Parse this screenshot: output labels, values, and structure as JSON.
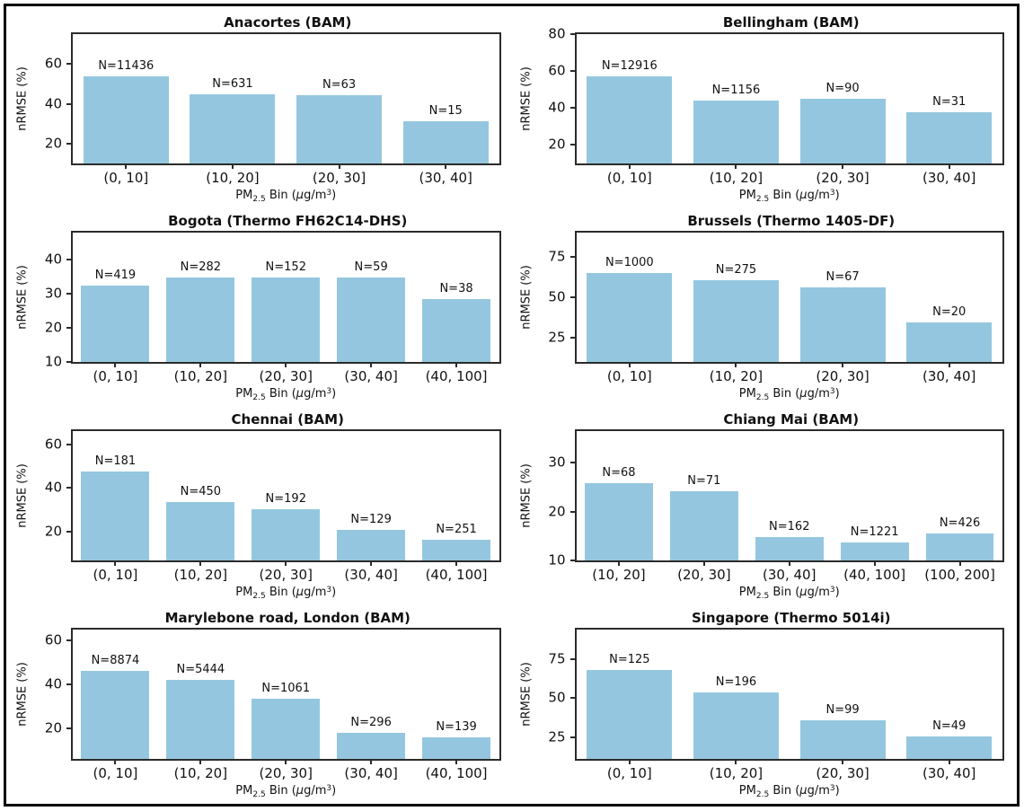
{
  "figure": {
    "background": "#ffffff",
    "frame_border_color": "#000000",
    "axis_color": "#2b2b2b",
    "text_color": "#111111",
    "bar_color": "#94c7df",
    "count_prefix": "N=",
    "shared_ylabel": "nRMSE (%)",
    "shared_xlabel_text": "PM2.5 Bin (μg/m³)",
    "xlabel_parts": {
      "p1": "PM",
      "sub": "2.5",
      "p2": " Bin (",
      "mu": "μ",
      "p3": "g/m",
      "sup": "3",
      "p4": ")"
    }
  },
  "chart_data": [
    {
      "type": "bar",
      "title": "Anacortes (BAM)",
      "ylabel": "nRMSE (%)",
      "xlabel": "PM2.5 Bin (μg/m³)",
      "categories": [
        "(0, 10]",
        "(10, 20]",
        "(20, 30]",
        "(30, 40]"
      ],
      "values": [
        53.8,
        44.6,
        44.1,
        31.2
      ],
      "counts": [
        11436,
        631,
        63,
        15
      ],
      "yticks": [
        20,
        40,
        60
      ],
      "ylim": [
        10,
        75
      ],
      "grid": false,
      "legend": false
    },
    {
      "type": "bar",
      "title": "Bellingham (BAM)",
      "ylabel": "nRMSE (%)",
      "xlabel": "PM2.5 Bin (μg/m³)",
      "categories": [
        "(0, 10]",
        "(10, 20]",
        "(20, 30]",
        "(30, 40]"
      ],
      "values": [
        57.0,
        44.2,
        45.2,
        37.5
      ],
      "counts": [
        12916,
        1156,
        90,
        31
      ],
      "yticks": [
        20,
        40,
        60,
        80
      ],
      "ylim": [
        10,
        80
      ],
      "grid": false,
      "legend": false
    },
    {
      "type": "bar",
      "title": "Bogota (Thermo FH62C14-DHS)",
      "ylabel": "nRMSE (%)",
      "xlabel": "PM2.5 Bin (μg/m³)",
      "categories": [
        "(0, 10]",
        "(10, 20]",
        "(20, 30]",
        "(30, 40]",
        "(40, 100]"
      ],
      "values": [
        32.4,
        34.7,
        34.8,
        34.8,
        28.4
      ],
      "counts": [
        419,
        282,
        152,
        59,
        38
      ],
      "yticks": [
        10,
        20,
        30,
        40
      ],
      "ylim": [
        10,
        48
      ],
      "grid": false,
      "legend": false
    },
    {
      "type": "bar",
      "title": "Brussels (Thermo 1405-DF)",
      "ylabel": "nRMSE (%)",
      "xlabel": "PM2.5 Bin (μg/m³)",
      "categories": [
        "(0, 10]",
        "(10, 20]",
        "(20, 30]",
        "(30, 40]"
      ],
      "values": [
        65.0,
        60.6,
        56.0,
        34.5
      ],
      "counts": [
        1000,
        275,
        67,
        20
      ],
      "yticks": [
        25,
        50,
        75
      ],
      "ylim": [
        10,
        90
      ],
      "grid": false,
      "legend": false
    },
    {
      "type": "bar",
      "title": "Chennai (BAM)",
      "ylabel": "nRMSE (%)",
      "xlabel": "PM2.5 Bin (μg/m³)",
      "categories": [
        "(0, 10]",
        "(10, 20]",
        "(20, 30]",
        "(30, 40]",
        "(40, 100]"
      ],
      "values": [
        47.4,
        33.5,
        30.5,
        21.0,
        16.5
      ],
      "counts": [
        181,
        450,
        192,
        129,
        251
      ],
      "yticks": [
        20,
        40,
        60
      ],
      "ylim": [
        7,
        66
      ],
      "grid": false,
      "legend": false
    },
    {
      "type": "bar",
      "title": "Chiang Mai (BAM)",
      "ylabel": "nRMSE (%)",
      "xlabel": "PM2.5 Bin (μg/m³)",
      "categories": [
        "(10, 20]",
        "(20, 30]",
        "(30, 40]",
        "(40, 100]",
        "(100, 200]"
      ],
      "values": [
        25.9,
        24.2,
        14.8,
        13.7,
        15.5
      ],
      "counts": [
        68,
        71,
        162,
        1221,
        426
      ],
      "yticks": [
        10,
        20,
        30
      ],
      "ylim": [
        10,
        36.5
      ],
      "grid": false,
      "legend": false
    },
    {
      "type": "bar",
      "title": "Marylebone road, London (BAM)",
      "ylabel": "nRMSE (%)",
      "xlabel": "PM2.5 Bin (μg/m³)",
      "categories": [
        "(0, 10]",
        "(10, 20]",
        "(20, 30]",
        "(30, 40]",
        "(40, 100]"
      ],
      "values": [
        46.0,
        42.0,
        33.5,
        18.0,
        15.8
      ],
      "counts": [
        8874,
        5444,
        1061,
        296,
        139
      ],
      "yticks": [
        20,
        40,
        60
      ],
      "ylim": [
        6,
        65
      ],
      "grid": false,
      "legend": false
    },
    {
      "type": "bar",
      "title": "Singapore (Thermo 5014i)",
      "ylabel": "nRMSE (%)",
      "xlabel": "PM2.5 Bin (μg/m³)",
      "categories": [
        "(0, 10]",
        "(10, 20]",
        "(20, 30]",
        "(30, 40]"
      ],
      "values": [
        68.0,
        53.5,
        36.0,
        25.5
      ],
      "counts": [
        125,
        196,
        99,
        49
      ],
      "yticks": [
        25,
        50,
        75
      ],
      "ylim": [
        11,
        94
      ],
      "grid": false,
      "legend": false
    }
  ]
}
